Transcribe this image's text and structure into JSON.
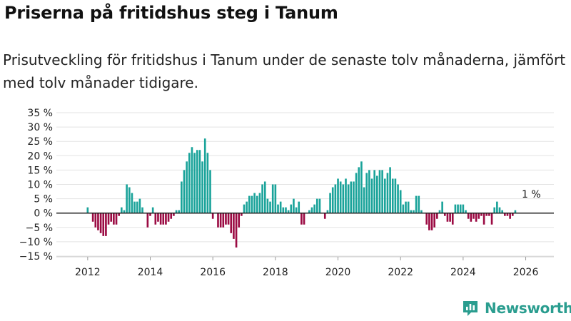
{
  "header": {
    "title": "Priserna på fritidshus steg i Tanum",
    "subtitle": "Prisutveckling för fritidshus i Tanum under de senaste tolv månaderna, jämfört med tolv månader tidigare."
  },
  "brand": {
    "name": "Newsworthy",
    "icon": "newsworthy-logo-icon"
  },
  "colors": {
    "positive": "#1aa39a",
    "negative": "#9b0b43",
    "grid": "#e3e3e3",
    "zero": "#222222",
    "brand": "#2a9d8f"
  },
  "chart_data": {
    "type": "bar",
    "title": "Priserna på fritidshus steg i Tanum",
    "xlabel": "",
    "ylabel": "",
    "ylim": [
      -15,
      35
    ],
    "xlim": [
      2011.0,
      2026.9
    ],
    "y_ticks": [
      {
        "value": 35,
        "label": "35 %"
      },
      {
        "value": 30,
        "label": "30 %"
      },
      {
        "value": 25,
        "label": "25 %"
      },
      {
        "value": 20,
        "label": "20 %"
      },
      {
        "value": 15,
        "label": "15 %"
      },
      {
        "value": 10,
        "label": "10 %"
      },
      {
        "value": 5,
        "label": "5 %"
      },
      {
        "value": 0,
        "label": "0 %"
      },
      {
        "value": -5,
        "label": "−5 %"
      },
      {
        "value": -10,
        "label": "−10 %"
      },
      {
        "value": -15,
        "label": "−15 %"
      }
    ],
    "x_ticks": [
      {
        "value": 2012,
        "label": "2012"
      },
      {
        "value": 2014,
        "label": "2014"
      },
      {
        "value": 2016,
        "label": "2016"
      },
      {
        "value": 2018,
        "label": "2018"
      },
      {
        "value": 2020,
        "label": "2020"
      },
      {
        "value": 2022,
        "label": "2022"
      },
      {
        "value": 2024,
        "label": "2024"
      },
      {
        "value": 2026,
        "label": "2026"
      }
    ],
    "start": 2012.0,
    "step": 0.0833333,
    "annotation": {
      "label": "1 %",
      "value": 1
    },
    "values": [
      2,
      0,
      -3,
      -5,
      -6,
      -7,
      -8,
      -8,
      -4,
      -3,
      -4,
      -4,
      -1,
      2,
      1,
      10,
      9,
      7,
      4,
      4,
      5,
      2,
      0,
      -5,
      -1,
      2,
      -4,
      -3,
      -4,
      -4,
      -4,
      -3,
      -2,
      -1,
      1,
      1,
      11,
      15,
      18,
      21,
      23,
      21,
      22,
      22,
      18,
      26,
      21,
      15,
      -2,
      0,
      -5,
      -5,
      -5,
      -4,
      -4,
      -7,
      -9,
      -12,
      -5,
      -1,
      3,
      4,
      6,
      6,
      7,
      6,
      7,
      10,
      11,
      5,
      4,
      10,
      10,
      3,
      4,
      2,
      2,
      1,
      3,
      5,
      2,
      4,
      -4,
      -4,
      0,
      1,
      2,
      3,
      5,
      5,
      0,
      -2,
      1,
      7,
      9,
      10,
      12,
      11,
      10,
      12,
      10,
      11,
      11,
      14,
      16,
      18,
      9,
      14,
      15,
      12,
      15,
      13,
      15,
      15,
      12,
      14,
      16,
      12,
      12,
      10,
      8,
      3,
      4,
      4,
      1,
      1,
      6,
      6,
      1,
      0,
      -4,
      -6,
      -6,
      -5,
      -2,
      1,
      4,
      -1,
      -3,
      -3,
      -4,
      3,
      3,
      3,
      3,
      1,
      -2,
      -3,
      -2,
      -3,
      -2,
      -1,
      -4,
      -1,
      -1,
      -4,
      2,
      4,
      2,
      1,
      -1,
      -1,
      -2,
      -1,
      1
    ]
  }
}
